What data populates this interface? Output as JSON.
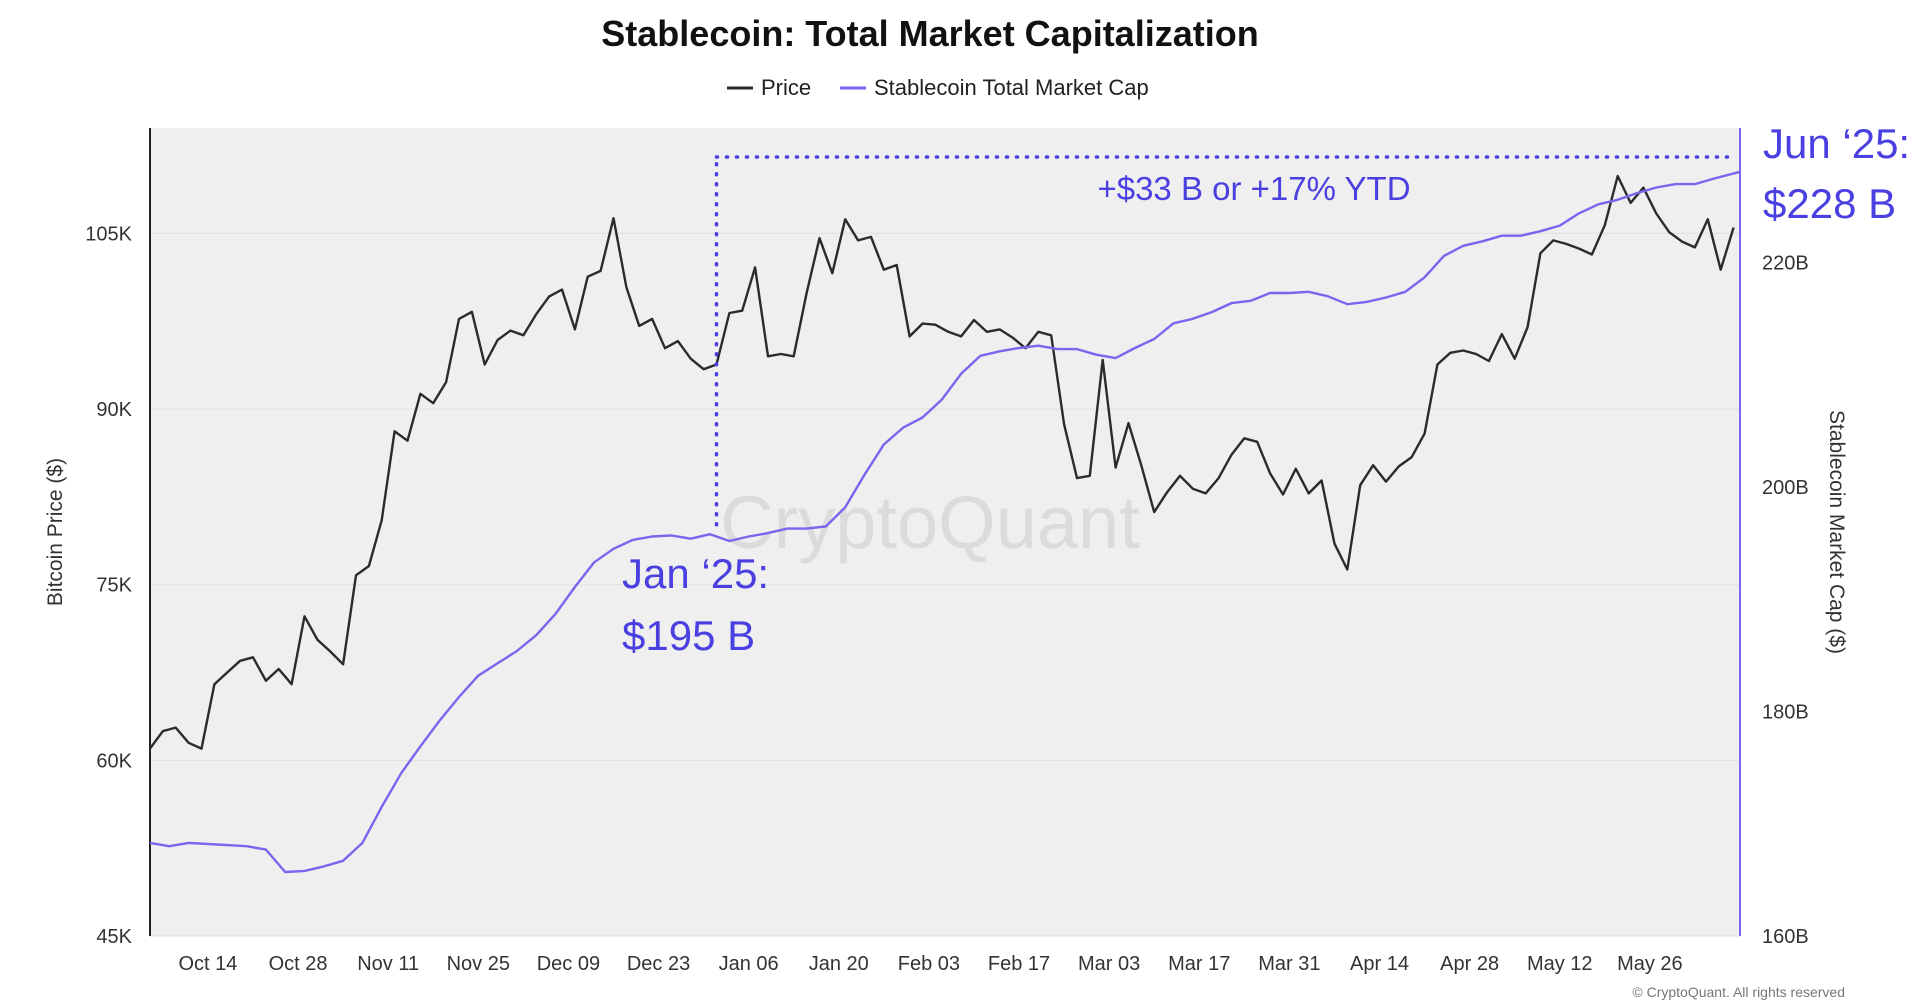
{
  "colors": {
    "price": "#2b2b2b",
    "stablecoin": "#7766ee",
    "annotation": "#4a3fe0",
    "plot_bg": "#efefef"
  },
  "chart_data": {
    "type": "line",
    "title": "Stablecoin: Total Market Capitalization",
    "legend": {
      "placement": "top-center",
      "items": [
        "Price",
        "Stablecoin Total Market Cap"
      ]
    },
    "grid": true,
    "x_axis": {
      "ticks": [
        "Oct 14",
        "Oct 28",
        "Nov 11",
        "Nov 25",
        "Dec 09",
        "Dec 23",
        "Jan 06",
        "Jan 20",
        "Feb 03",
        "Feb 17",
        "Mar 03",
        "Mar 17",
        "Mar 31",
        "Apr 14",
        "Apr 28",
        "May 12",
        "May 26"
      ],
      "range": [
        "2024-10-05",
        "2025-06-09"
      ]
    },
    "y_left": {
      "label": "Bitcoin Price ($)",
      "ticks": [
        "45K",
        "60K",
        "75K",
        "90K",
        "105K"
      ],
      "range": [
        45000,
        114000
      ]
    },
    "y_right": {
      "label": "Stablecoin Market Cap ($)",
      "ticks": [
        "160B",
        "180B",
        "200B",
        "220B"
      ],
      "range": [
        160,
        232
      ]
    },
    "series": [
      {
        "name": "Price",
        "x": [
          "2024-10-05",
          "2024-10-07",
          "2024-10-09",
          "2024-10-11",
          "2024-10-13",
          "2024-10-15",
          "2024-10-17",
          "2024-10-19",
          "2024-10-21",
          "2024-10-23",
          "2024-10-25",
          "2024-10-27",
          "2024-10-29",
          "2024-10-31",
          "2024-11-02",
          "2024-11-04",
          "2024-11-06",
          "2024-11-08",
          "2024-11-10",
          "2024-11-12",
          "2024-11-14",
          "2024-11-16",
          "2024-11-18",
          "2024-11-20",
          "2024-11-22",
          "2024-11-24",
          "2024-11-26",
          "2024-11-28",
          "2024-11-30",
          "2024-12-02",
          "2024-12-04",
          "2024-12-06",
          "2024-12-08",
          "2024-12-10",
          "2024-12-12",
          "2024-12-14",
          "2024-12-16",
          "2024-12-18",
          "2024-12-20",
          "2024-12-22",
          "2024-12-24",
          "2024-12-26",
          "2024-12-28",
          "2024-12-30",
          "2025-01-01",
          "2025-01-03",
          "2025-01-05",
          "2025-01-07",
          "2025-01-09",
          "2025-01-11",
          "2025-01-13",
          "2025-01-15",
          "2025-01-17",
          "2025-01-19",
          "2025-01-21",
          "2025-01-23",
          "2025-01-25",
          "2025-01-27",
          "2025-01-29",
          "2025-01-31",
          "2025-02-02",
          "2025-02-04",
          "2025-02-06",
          "2025-02-08",
          "2025-02-10",
          "2025-02-12",
          "2025-02-14",
          "2025-02-16",
          "2025-02-18",
          "2025-02-20",
          "2025-02-22",
          "2025-02-24",
          "2025-02-26",
          "2025-02-28",
          "2025-03-02",
          "2025-03-04",
          "2025-03-06",
          "2025-03-08",
          "2025-03-10",
          "2025-03-12",
          "2025-03-14",
          "2025-03-16",
          "2025-03-18",
          "2025-03-20",
          "2025-03-22",
          "2025-03-24",
          "2025-03-26",
          "2025-03-28",
          "2025-03-30",
          "2025-04-01",
          "2025-04-03",
          "2025-04-05",
          "2025-04-07",
          "2025-04-09",
          "2025-04-11",
          "2025-04-13",
          "2025-04-15",
          "2025-04-17",
          "2025-04-19",
          "2025-04-21",
          "2025-04-23",
          "2025-04-25",
          "2025-04-27",
          "2025-04-29",
          "2025-05-01",
          "2025-05-03",
          "2025-05-05",
          "2025-05-07",
          "2025-05-09",
          "2025-05-11",
          "2025-05-13",
          "2025-05-15",
          "2025-05-17",
          "2025-05-19",
          "2025-05-21",
          "2025-05-23",
          "2025-05-25",
          "2025-05-27",
          "2025-05-29",
          "2025-05-31",
          "2025-06-02",
          "2025-06-04",
          "2025-06-06",
          "2025-06-08"
        ],
        "values": [
          61000,
          62500,
          62800,
          61500,
          61000,
          66500,
          67500,
          68500,
          68800,
          66800,
          67800,
          66500,
          72300,
          70300,
          69300,
          68200,
          75800,
          76600,
          80500,
          88100,
          87300,
          91300,
          90500,
          92300,
          97700,
          98300,
          93800,
          95900,
          96700,
          96300,
          98100,
          99600,
          100200,
          96800,
          101300,
          101800,
          106300,
          100400,
          97100,
          97700,
          95200,
          95800,
          94300,
          93400,
          93800,
          98200,
          98400,
          102100,
          94500,
          94700,
          94500,
          99900,
          104600,
          101600,
          106200,
          104400,
          104700,
          101900,
          102300,
          96200,
          97300,
          97200,
          96600,
          96200,
          97600,
          96600,
          96800,
          96100,
          95200,
          96600,
          96300,
          88700,
          84100,
          84300,
          94200,
          85000,
          88800,
          85200,
          81200,
          82900,
          84300,
          83200,
          82800,
          84100,
          86100,
          87500,
          87200,
          84500,
          82700,
          84900,
          82800,
          83900,
          78500,
          76300,
          83500,
          85200,
          83800,
          85100,
          85900,
          87900,
          93800,
          94800,
          95000,
          94700,
          94100,
          96400,
          94300,
          97000,
          103300,
          104400,
          104100,
          103700,
          103200,
          105700,
          109900,
          107600,
          108900,
          106700,
          105100,
          104300,
          103800,
          106200,
          101900,
          105500
        ],
        "color": "#2b2b2b"
      },
      {
        "name": "Stablecoin Total Market Cap",
        "x": [
          "2024-10-05",
          "2024-10-08",
          "2024-10-11",
          "2024-10-14",
          "2024-10-17",
          "2024-10-20",
          "2024-10-23",
          "2024-10-26",
          "2024-10-29",
          "2024-11-01",
          "2024-11-04",
          "2024-11-07",
          "2024-11-10",
          "2024-11-13",
          "2024-11-16",
          "2024-11-19",
          "2024-11-22",
          "2024-11-25",
          "2024-11-28",
          "2024-12-01",
          "2024-12-04",
          "2024-12-07",
          "2024-12-10",
          "2024-12-13",
          "2024-12-16",
          "2024-12-19",
          "2024-12-22",
          "2024-12-25",
          "2024-12-28",
          "2024-12-31",
          "2025-01-03",
          "2025-01-06",
          "2025-01-09",
          "2025-01-12",
          "2025-01-15",
          "2025-01-18",
          "2025-01-21",
          "2025-01-24",
          "2025-01-27",
          "2025-01-30",
          "2025-02-02",
          "2025-02-05",
          "2025-02-08",
          "2025-02-11",
          "2025-02-14",
          "2025-02-17",
          "2025-02-20",
          "2025-02-23",
          "2025-02-26",
          "2025-03-01",
          "2025-03-04",
          "2025-03-07",
          "2025-03-10",
          "2025-03-13",
          "2025-03-16",
          "2025-03-19",
          "2025-03-22",
          "2025-03-25",
          "2025-03-28",
          "2025-03-31",
          "2025-04-03",
          "2025-04-06",
          "2025-04-09",
          "2025-04-12",
          "2025-04-15",
          "2025-04-18",
          "2025-04-21",
          "2025-04-24",
          "2025-04-27",
          "2025-04-30",
          "2025-05-03",
          "2025-05-06",
          "2025-05-09",
          "2025-05-12",
          "2025-05-15",
          "2025-05-18",
          "2025-05-21",
          "2025-05-24",
          "2025-05-27",
          "2025-05-30",
          "2025-06-02",
          "2025-06-05",
          "2025-06-09"
        ],
        "values": [
          168.3,
          168.0,
          168.3,
          168.2,
          168.1,
          168.0,
          167.7,
          165.7,
          165.8,
          166.2,
          166.7,
          168.3,
          171.5,
          174.5,
          176.9,
          179.2,
          181.3,
          183.2,
          184.3,
          185.4,
          186.8,
          188.7,
          191.1,
          193.3,
          194.5,
          195.3,
          195.6,
          195.7,
          195.4,
          195.8,
          195.2,
          195.6,
          195.9,
          196.3,
          196.3,
          196.5,
          198.2,
          201.1,
          203.8,
          205.3,
          206.2,
          207.8,
          210.1,
          211.7,
          212.1,
          212.4,
          212.6,
          212.3,
          212.3,
          211.8,
          211.5,
          212.4,
          213.2,
          214.6,
          215.0,
          215.6,
          216.4,
          216.6,
          217.3,
          217.3,
          217.4,
          217.0,
          216.3,
          216.5,
          216.9,
          217.4,
          218.7,
          220.6,
          221.5,
          221.9,
          222.4,
          222.4,
          222.8,
          223.3,
          224.4,
          225.2,
          225.6,
          226.2,
          226.7,
          227.0,
          227.0,
          227.5,
          228.1
        ],
        "color": "#7766ee"
      }
    ],
    "annotations": {
      "start_label_line1": "Jan ‘25:",
      "start_label_line2": "$195 B",
      "end_label_line1": "Jun ‘25:",
      "end_label_line2": "$228 B",
      "change_label": "+$33 B or +17% YTD"
    },
    "watermark": "CryptoQuant",
    "copyright": "© CryptoQuant. All rights reserved"
  }
}
